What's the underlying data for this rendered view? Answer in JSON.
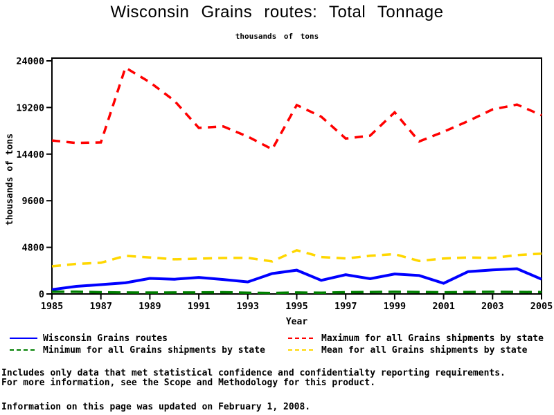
{
  "header": {
    "title": "Wisconsin Grains routes: Total Tonnage",
    "subtitle": "thousands of tons"
  },
  "chart_data": {
    "type": "line",
    "title": "Wisconsin Grains routes: Total Tonnage",
    "subtitle": "thousands of tons",
    "xlabel": "Year",
    "ylabel": "thousands of tons",
    "ylim": [
      0,
      24000
    ],
    "yticks": [
      0,
      4800,
      9600,
      14400,
      19200,
      24000
    ],
    "xlim": [
      1985,
      2005
    ],
    "xticks": [
      1985,
      1987,
      1989,
      1991,
      1993,
      1995,
      1997,
      1999,
      2001,
      2003,
      2005
    ],
    "grid": false,
    "legend_position": "bottom",
    "x": [
      1985,
      1986,
      1987,
      1988,
      1989,
      1990,
      1991,
      1992,
      1993,
      1994,
      1995,
      1996,
      1997,
      1998,
      1999,
      2000,
      2001,
      2002,
      2003,
      2004,
      2005
    ],
    "series": [
      {
        "name": "Wisconsin Grains routes",
        "color": "#0000ff",
        "dasharray": "",
        "width": 4,
        "values": [
          450,
          780,
          960,
          1150,
          1600,
          1520,
          1700,
          1490,
          1240,
          2100,
          2450,
          1400,
          1980,
          1570,
          2060,
          1900,
          1100,
          2300,
          2470,
          2600,
          1520
        ]
      },
      {
        "name": "Maximum for all Grains shipments by state",
        "color": "#ff0000",
        "dasharray": "12 9",
        "width": 3.5,
        "values": [
          15800,
          15550,
          15600,
          23300,
          21800,
          19900,
          17100,
          17250,
          16200,
          14900,
          19450,
          18250,
          16000,
          16300,
          18700,
          15700,
          16700,
          17800,
          19000,
          19500,
          18400
        ]
      },
      {
        "name": "Minimum for all Grains shipments by state",
        "color": "#008000",
        "dasharray": "18 9",
        "width": 3.5,
        "values": [
          230,
          230,
          180,
          150,
          140,
          150,
          160,
          180,
          120,
          100,
          150,
          120,
          180,
          200,
          220,
          200,
          170,
          200,
          220,
          210,
          190
        ]
      },
      {
        "name": "Mean for all Grains shipments by state",
        "color": "#ffd700",
        "dasharray": "13 9",
        "width": 3.5,
        "values": [
          2850,
          3100,
          3210,
          3930,
          3760,
          3570,
          3640,
          3700,
          3720,
          3350,
          4500,
          3800,
          3650,
          3930,
          4100,
          3400,
          3650,
          3750,
          3700,
          4000,
          4150
        ]
      }
    ]
  },
  "legend": {
    "items": [
      {
        "label": "Wisconsin Grains routes",
        "color": "#0000ff",
        "style": "solid"
      },
      {
        "label": "Maximum for all Grains shipments by state",
        "color": "#ff0000",
        "style": "dashed"
      },
      {
        "label": "Minimum for all Grains shipments by state",
        "color": "#008000",
        "style": "dashed"
      },
      {
        "label": "Mean for all Grains shipments by state",
        "color": "#ffd700",
        "style": "dashed"
      }
    ]
  },
  "footnotes": {
    "line1": "Includes only data that met statistical confidence and confidentialty reporting requirements.",
    "line2": "For more information, see the Scope and Methodology for this product.",
    "line3": "Information on this page was updated on February 1, 2008."
  }
}
